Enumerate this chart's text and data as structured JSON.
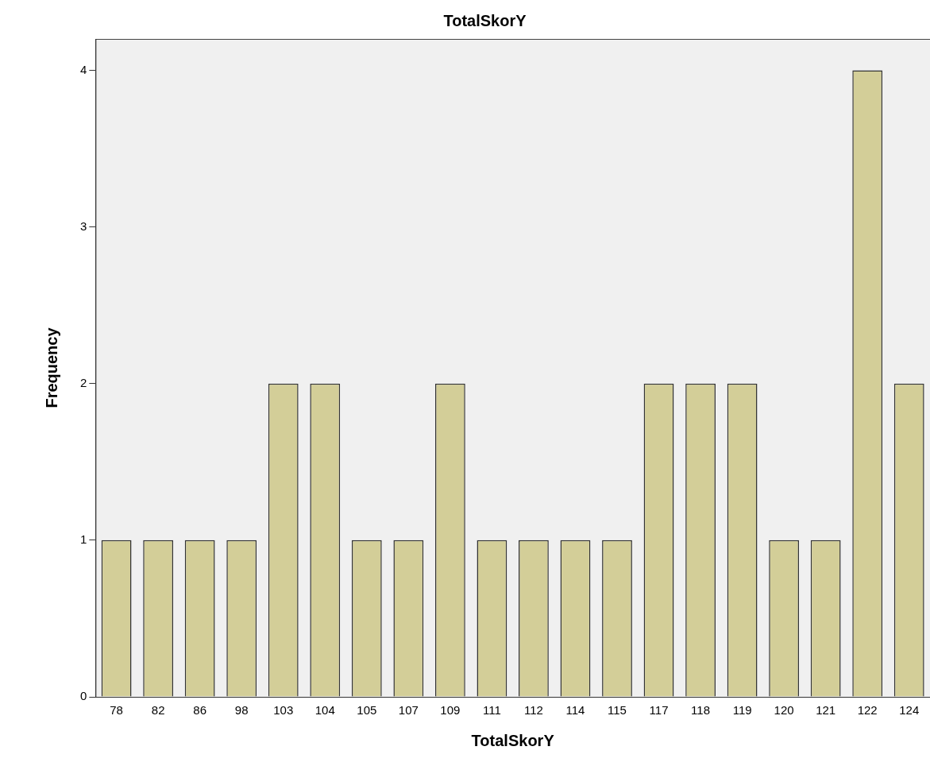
{
  "chart_data": {
    "type": "bar",
    "title": "TotalSkorY",
    "xlabel": "TotalSkorY",
    "ylabel": "Frequency",
    "categories": [
      "78",
      "82",
      "86",
      "98",
      "103",
      "104",
      "105",
      "107",
      "109",
      "111",
      "112",
      "114",
      "115",
      "117",
      "118",
      "119",
      "120",
      "121",
      "122",
      "124"
    ],
    "values": [
      1,
      1,
      1,
      1,
      2,
      2,
      1,
      1,
      2,
      1,
      1,
      1,
      1,
      2,
      2,
      2,
      1,
      1,
      4,
      2
    ],
    "color": "#d3ce98",
    "ylim": [
      0,
      4.2
    ],
    "yticks": [
      0,
      1,
      2,
      3,
      4
    ],
    "grid": false,
    "legend": false
  }
}
